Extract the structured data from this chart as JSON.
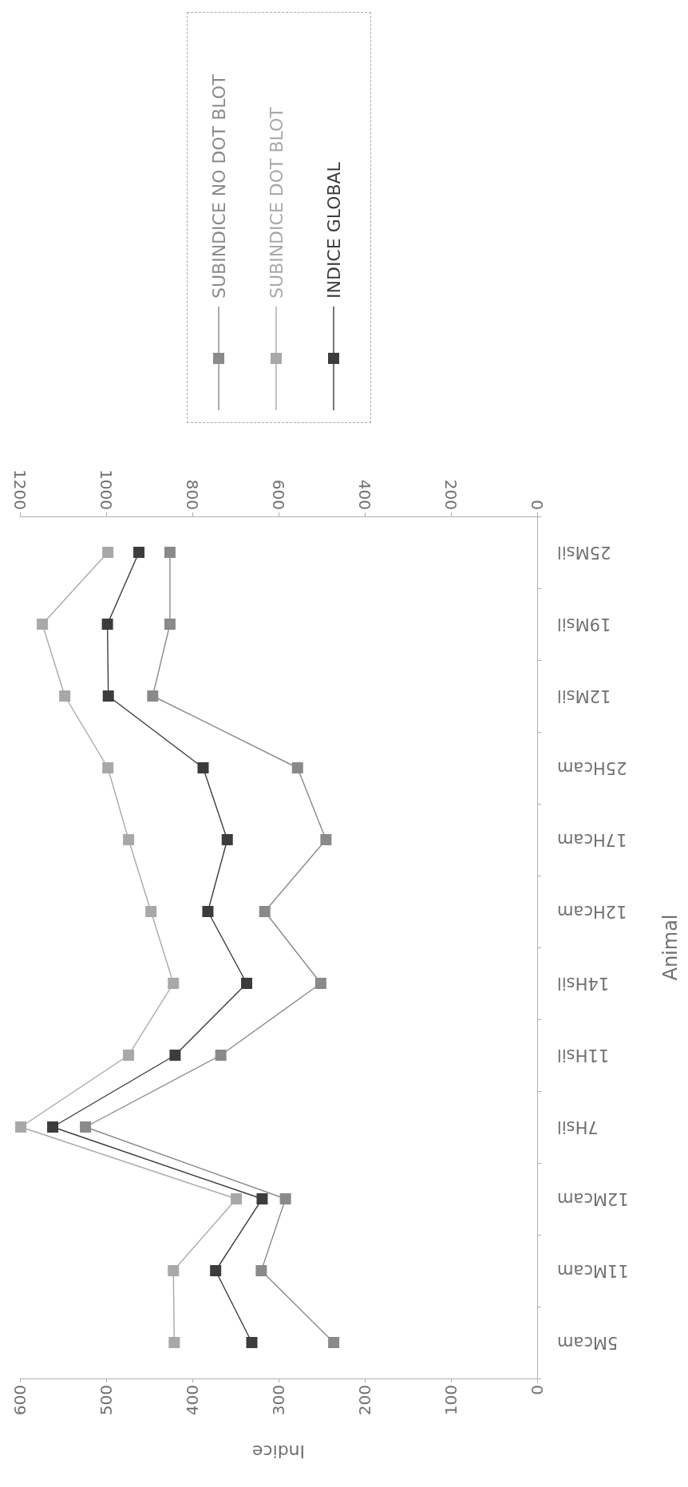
{
  "chart_data": {
    "type": "line",
    "orientation": "horizontal",
    "xlabel": "Indice",
    "ylabel": "Animal",
    "categories": [
      "25Msil",
      "19Msil",
      "12Msil",
      "25Hcam",
      "17Hcam",
      "12Hcam",
      "14Hsil",
      "11Hsil",
      "7Hsil",
      "12Mcam",
      "11Mcam",
      "5Mcam"
    ],
    "series": [
      {
        "name": "SUBINDICE NO DOT BLOT",
        "color": "#8a8a8a",
        "values": [
          426,
          426,
          446,
          278,
          245,
          316,
          251,
          367,
          524,
          292,
          320,
          236
        ]
      },
      {
        "name": "SUBINDICE DOT BLOT",
        "color": "#a8a8a8",
        "values": [
          498,
          574,
          548,
          498,
          474,
          448,
          422,
          474,
          599,
          349,
          422,
          421
        ]
      },
      {
        "name": "INDICE GLOBAL",
        "color": "#3c3c3c",
        "axis": "x2",
        "values": [
          924,
          997,
          995,
          775,
          719,
          764,
          674,
          840,
          1124,
          638,
          746,
          662
        ]
      }
    ],
    "xlim": [
      600,
      0
    ],
    "xticks": [
      600,
      500,
      400,
      300,
      200,
      100,
      0
    ],
    "x2lim": [
      1200,
      0
    ],
    "x2ticks": [
      1200,
      1000,
      800,
      600,
      400,
      200,
      0
    ],
    "grid": false,
    "legend": "top",
    "marker": "square",
    "line_style": "solid"
  }
}
